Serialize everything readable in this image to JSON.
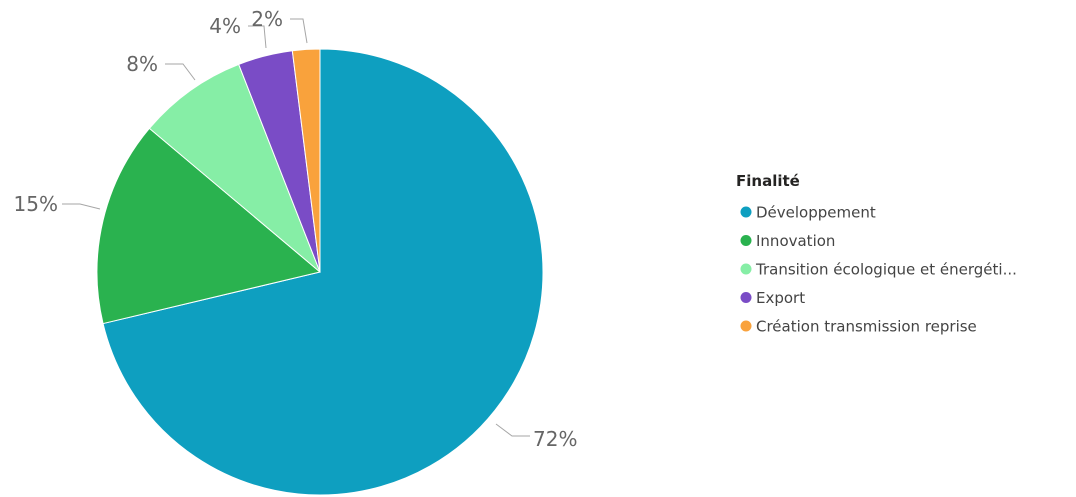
{
  "chart_data": {
    "type": "pie",
    "legend_title": "Finalité",
    "legend_position": "right",
    "start_angle": "top, clockwise",
    "slices": [
      {
        "name": "Développement",
        "value": 72,
        "label": "72%",
        "color": "#0e9fc0"
      },
      {
        "name": "Innovation",
        "value": 15,
        "label": "15%",
        "color": "#2ab24f"
      },
      {
        "name": "Transition écologique et énergéti...",
        "value": 8,
        "label": "8%",
        "color": "#86eea6"
      },
      {
        "name": "Export",
        "value": 4,
        "label": "4%",
        "color": "#7a4cc6"
      },
      {
        "name": "Création transmission reprise",
        "value": 2,
        "label": "2%",
        "color": "#f9a23c"
      }
    ]
  }
}
